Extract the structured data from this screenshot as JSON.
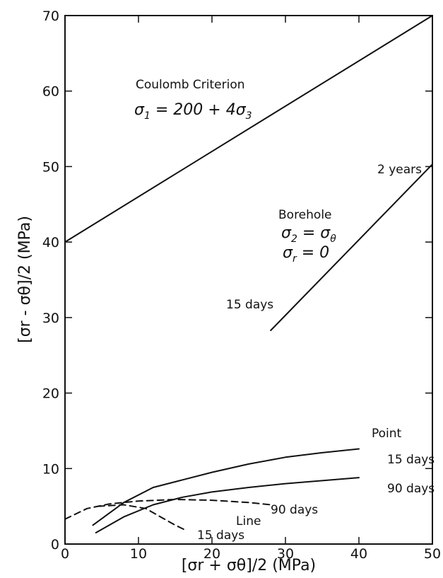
{
  "chart_data": {
    "type": "line",
    "xlabel": "[σr + σθ]/2 (MPa)",
    "ylabel": "[σr - σθ]/2 (MPa)",
    "xlim": [
      0,
      50
    ],
    "ylim": [
      0,
      70
    ],
    "xticks": [
      0,
      10,
      20,
      30,
      40,
      50
    ],
    "yticks": [
      0,
      10,
      20,
      30,
      40,
      50,
      60,
      70
    ],
    "grid": false,
    "series": [
      {
        "name": "Coulomb Criterion",
        "style": "solid",
        "points": [
          [
            0,
            40
          ],
          [
            50,
            70
          ]
        ]
      },
      {
        "name": "Borehole",
        "style": "solid",
        "points": [
          [
            28,
            28.3
          ],
          [
            50,
            50.3
          ]
        ]
      },
      {
        "name": "Point 15 days",
        "style": "solid",
        "points": [
          [
            3.8,
            2.5
          ],
          [
            8,
            5.5
          ],
          [
            12,
            7.5
          ],
          [
            16,
            8.5
          ],
          [
            20,
            9.5
          ],
          [
            25,
            10.6
          ],
          [
            30,
            11.5
          ],
          [
            35,
            12.1
          ],
          [
            40,
            12.6
          ]
        ]
      },
      {
        "name": "Point 90 days",
        "style": "solid",
        "points": [
          [
            4.2,
            1.5
          ],
          [
            8,
            3.6
          ],
          [
            12,
            5.2
          ],
          [
            16,
            6.2
          ],
          [
            20,
            6.9
          ],
          [
            25,
            7.5
          ],
          [
            30,
            8.0
          ],
          [
            35,
            8.4
          ],
          [
            40,
            8.8
          ]
        ]
      },
      {
        "name": "Line 90 days",
        "style": "dashed",
        "points": [
          [
            0,
            3.3
          ],
          [
            3,
            4.7
          ],
          [
            6,
            5.3
          ],
          [
            10,
            5.7
          ],
          [
            15,
            5.9
          ],
          [
            20,
            5.8
          ],
          [
            25,
            5.5
          ],
          [
            28,
            5.2
          ]
        ]
      },
      {
        "name": "Line 15 days",
        "style": "dashed",
        "points": [
          [
            4.5,
            5.0
          ],
          [
            8,
            5.2
          ],
          [
            11,
            4.7
          ],
          [
            13,
            3.6
          ],
          [
            15,
            2.5
          ],
          [
            16.5,
            1.8
          ]
        ]
      }
    ],
    "annotations": {
      "coulomb_title": "Coulomb Criterion",
      "coulomb_eq_lhs": "σ",
      "coulomb_eq_lhs_sub": "1",
      "coulomb_eq_rhs": " = 200 + 4σ",
      "coulomb_eq_rhs_sub": "3",
      "borehole_title": "Borehole",
      "borehole_eq1_a": "σ",
      "borehole_eq1_a_sub": "2",
      "borehole_eq1_b": " = σ",
      "borehole_eq1_b_sub": "θ",
      "borehole_eq2_a": "σ",
      "borehole_eq2_a_sub": "r",
      "borehole_eq2_b": " = 0",
      "two_years": "2 years",
      "fifteen_days_borehole": "15 days",
      "point_title": "Point",
      "point_15_days": "15 days",
      "point_90_days": "90 days",
      "line_title": "Line",
      "line_90_days": "90 days",
      "line_15_days": "15 days"
    }
  }
}
